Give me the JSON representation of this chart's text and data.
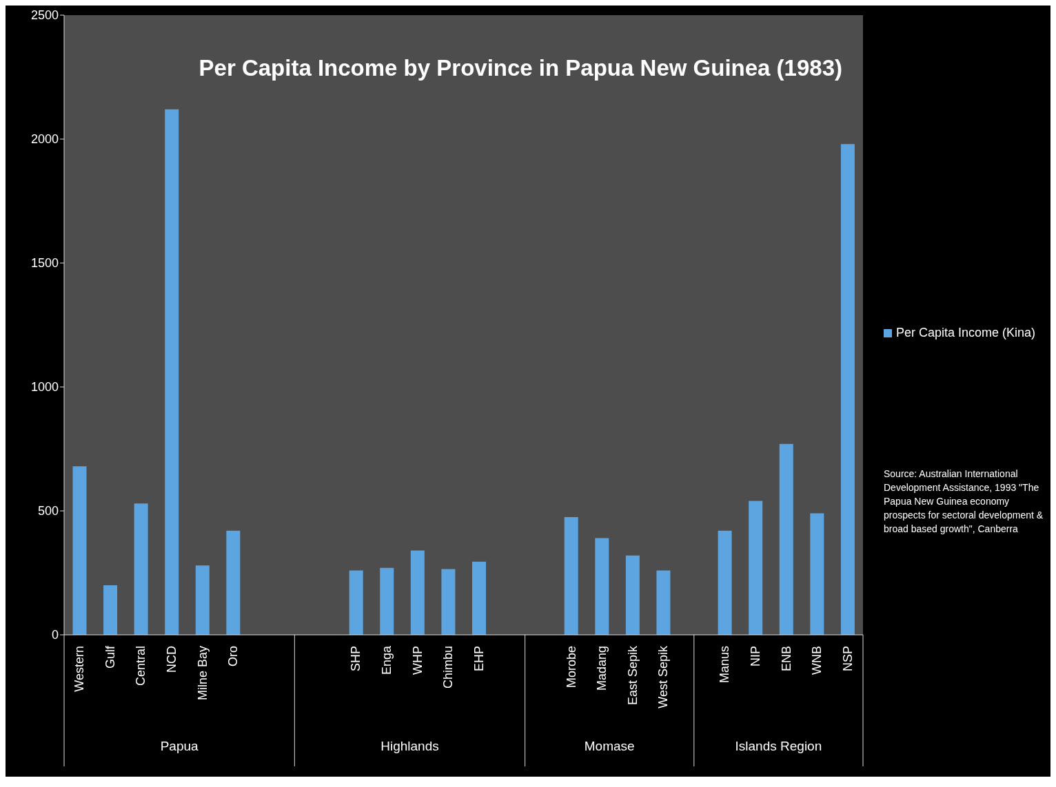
{
  "chart_data": {
    "type": "bar",
    "title": "Per Capita Income by Province in Papua New Guinea (1983)",
    "categories": [
      "Western",
      "Gulf",
      "Central",
      "NCD",
      "Milne Bay",
      "Oro",
      null,
      null,
      null,
      "SHP",
      "Enga",
      "WHP",
      "Chimbu",
      "EHP",
      null,
      null,
      "Morobe",
      "Madang",
      "East Sepik",
      "West Sepik",
      null,
      "Manus",
      "NIP",
      "ENB",
      "WNB",
      "NSP"
    ],
    "series": [
      {
        "name": "Per Capita Income (Kina)",
        "color": "#5da5e0",
        "values": [
          680,
          200,
          530,
          2120,
          280,
          420,
          null,
          null,
          null,
          260,
          270,
          340,
          265,
          295,
          null,
          null,
          475,
          390,
          320,
          260,
          null,
          420,
          540,
          770,
          490,
          1980
        ]
      }
    ],
    "annotations": [
      "Papua",
      "Highlands",
      "Momase",
      "Islands Region",
      "Source: Australian International Development Assistance, 1993 \"The Papua New Guinea economy prospects for sectoral development & broad based growth\", Canberra"
    ],
    "ylim": [
      0,
      2500
    ],
    "yticks": [
      0,
      500,
      1000,
      1500,
      2000,
      2500
    ],
    "grid": false,
    "legend": "right"
  }
}
